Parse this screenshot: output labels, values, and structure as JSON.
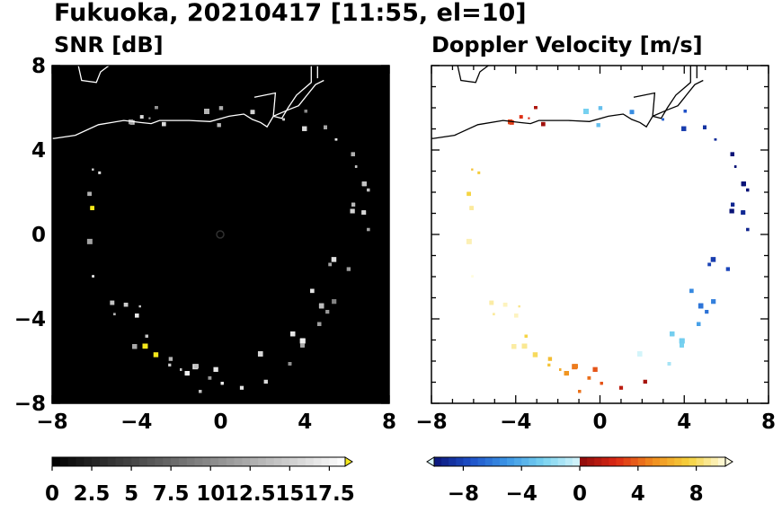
{
  "figure": {
    "title": "Fukuoka, 20210417 [11:55, el=10]"
  },
  "chart_data": [
    {
      "type": "heatmap",
      "title": "SNR [dB]",
      "x_ticks": [
        "−8",
        "−4",
        "0",
        "4",
        "8"
      ],
      "y_ticks": [
        "8",
        "4",
        "0",
        "−4",
        "−8"
      ],
      "xlim": [
        -8,
        8
      ],
      "ylim": [
        -8,
        8
      ],
      "colorbar": {
        "ticks": [
          "0",
          "2.5",
          "5",
          "7.5",
          "10",
          "12.5",
          "15",
          "17.5"
        ],
        "range": [
          0,
          18.5
        ],
        "extend": "max",
        "colormap": "black-to-white, yellow over",
        "over_color": "#f5e81b"
      },
      "background_color": "#000000",
      "coastline_color": "#ffffff"
    },
    {
      "type": "heatmap",
      "title": "Doppler Velocity [m/s]",
      "x_ticks": [
        "−8",
        "−4",
        "0",
        "4",
        "8"
      ],
      "y_ticks": [],
      "xlim": [
        -8,
        8
      ],
      "ylim": [
        -8,
        8
      ],
      "colorbar": {
        "ticks": [
          "−8",
          "−4",
          "0",
          "4",
          "8"
        ],
        "range": [
          -10,
          10
        ],
        "extend": "both",
        "colormap": "light blue - blue - navy | dark red - red - orange - yellow - pale yellow",
        "under_color": "#d8f6fb",
        "over_color": "#fffbe0"
      },
      "background_color": "#ffffff",
      "coastline_color": "#000000"
    }
  ]
}
